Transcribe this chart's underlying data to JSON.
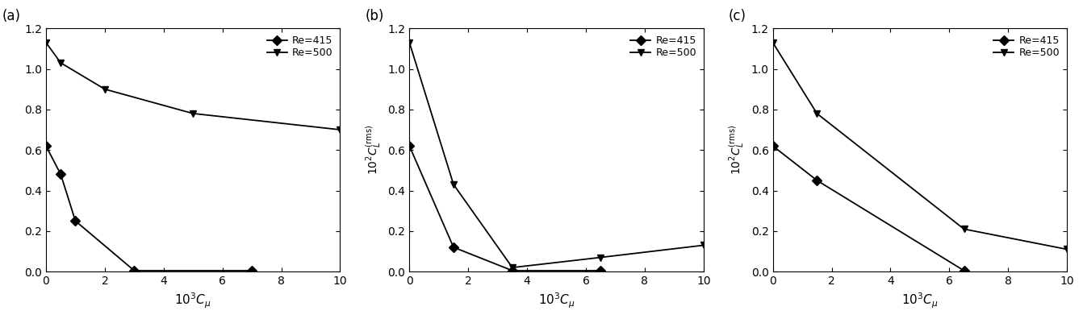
{
  "panels": [
    {
      "label": "(a)",
      "has_ylabel": false,
      "re415": {
        "x": [
          0,
          0.5,
          1.0,
          3.0,
          7.0
        ],
        "y": [
          0.62,
          0.48,
          0.25,
          0.005,
          0.005
        ]
      },
      "re500": {
        "x": [
          0,
          0.5,
          2.0,
          5.0,
          10.0
        ],
        "y": [
          1.13,
          1.03,
          0.9,
          0.78,
          0.7
        ]
      }
    },
    {
      "label": "(b)",
      "has_ylabel": true,
      "re415": {
        "x": [
          0,
          1.5,
          3.5,
          6.5
        ],
        "y": [
          0.62,
          0.12,
          0.005,
          0.005
        ]
      },
      "re500": {
        "x": [
          0,
          1.5,
          3.5,
          6.5,
          10.0
        ],
        "y": [
          1.13,
          0.43,
          0.02,
          0.07,
          0.13
        ]
      }
    },
    {
      "label": "(c)",
      "has_ylabel": true,
      "re415": {
        "x": [
          0,
          1.5,
          6.5
        ],
        "y": [
          0.62,
          0.45,
          0.005
        ]
      },
      "re500": {
        "x": [
          0,
          1.5,
          6.5,
          10.0
        ],
        "y": [
          1.13,
          0.78,
          0.21,
          0.11
        ]
      }
    }
  ],
  "xlabel": "$10^3 C_\\mu$",
  "ylabel_text": "$10^2 C_L^{\\mathrm{(rms)}}$",
  "legend_re415": "Re=415",
  "legend_re500": "Re=500",
  "xlim": [
    0,
    10
  ],
  "ylim": [
    0,
    1.2
  ],
  "yticks": [
    0,
    0.2,
    0.4,
    0.6,
    0.8,
    1.0,
    1.2
  ],
  "xticks": [
    0,
    2,
    4,
    6,
    8,
    10
  ],
  "color": "black",
  "linewidth": 1.3,
  "markersize": 6
}
